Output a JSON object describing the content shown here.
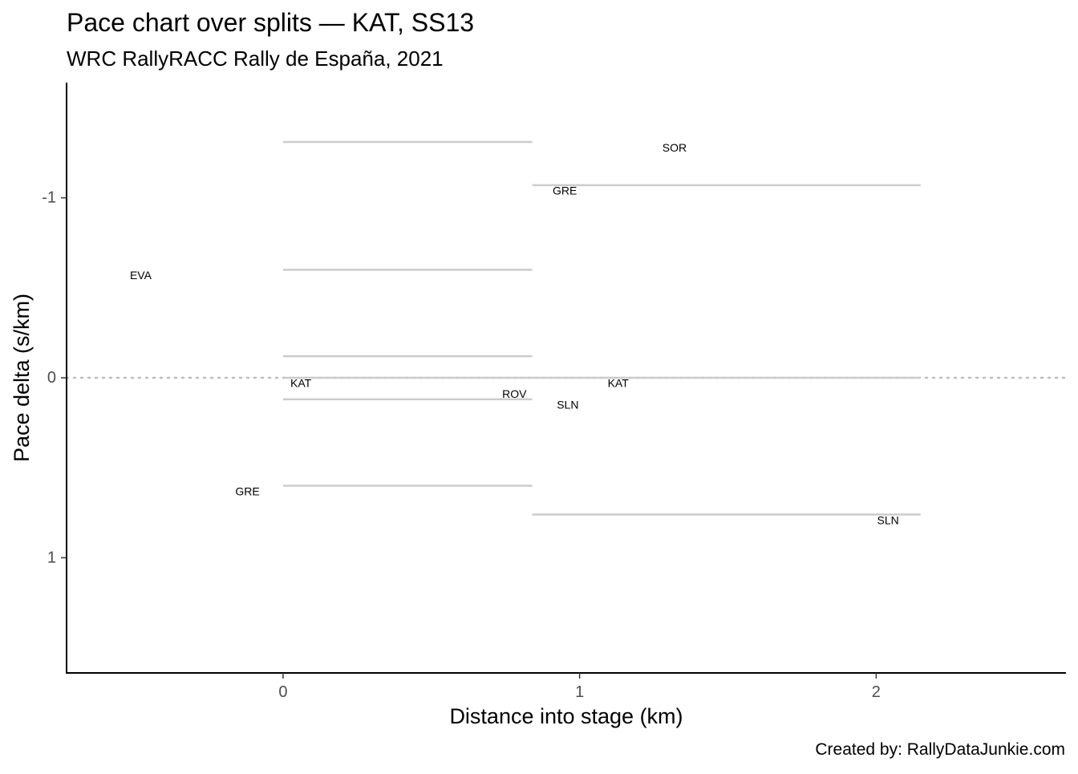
{
  "chart_data": {
    "type": "line",
    "title": "Pace chart over splits — KAT, SS13",
    "subtitle": "WRC RallyRACC Rally de España, 2021",
    "xlabel": "Distance into stage (km)",
    "ylabel": "Pace delta (s/km)",
    "caption": "Created by: RallyDataJunkie.com",
    "xlim": [
      -0.73,
      2.64
    ],
    "ylim": [
      1.64,
      -1.64
    ],
    "y_reversed": true,
    "x_ticks": [
      0,
      1,
      2
    ],
    "x_tick_labels": [
      "0",
      "1",
      "2"
    ],
    "y_ticks": [
      -1,
      0,
      1
    ],
    "y_tick_labels": [
      "-1",
      "0",
      "1"
    ],
    "reference_line": {
      "y": 0,
      "style": "dotted",
      "color": "#bdbdbd"
    },
    "grid": false,
    "line_color": "#cccccc",
    "split_segments": [
      {
        "x_start": 0.0,
        "x_end": 0.84,
        "y": -1.31
      },
      {
        "x_start": 0.0,
        "x_end": 0.84,
        "y": -0.6
      },
      {
        "x_start": 0.0,
        "x_end": 0.84,
        "y": -0.12
      },
      {
        "x_start": 0.0,
        "x_end": 0.84,
        "y": 0.0
      },
      {
        "x_start": 0.0,
        "x_end": 0.84,
        "y": 0.12
      },
      {
        "x_start": 0.0,
        "x_end": 0.84,
        "y": 0.6
      },
      {
        "x_start": 0.84,
        "x_end": 2.15,
        "y": -1.07
      },
      {
        "x_start": 0.84,
        "x_end": 2.15,
        "y": 0.0
      },
      {
        "x_start": 0.84,
        "x_end": 2.15,
        "y": 0.76
      }
    ],
    "driver_labels": [
      {
        "label": "SOR",
        "x": 1.32,
        "y": -1.28
      },
      {
        "label": "GRE",
        "x": 0.95,
        "y": -1.04
      },
      {
        "label": "EVA",
        "x": -0.48,
        "y": -0.57
      },
      {
        "label": "ROV",
        "x": 0.78,
        "y": 0.09
      },
      {
        "label": "KAT",
        "x": 0.06,
        "y": 0.03
      },
      {
        "label": "KAT",
        "x": 1.13,
        "y": 0.03
      },
      {
        "label": "SLN",
        "x": 0.96,
        "y": 0.15
      },
      {
        "label": "GRE",
        "x": -0.12,
        "y": 0.63
      },
      {
        "label": "SLN",
        "x": 2.04,
        "y": 0.79
      }
    ]
  }
}
